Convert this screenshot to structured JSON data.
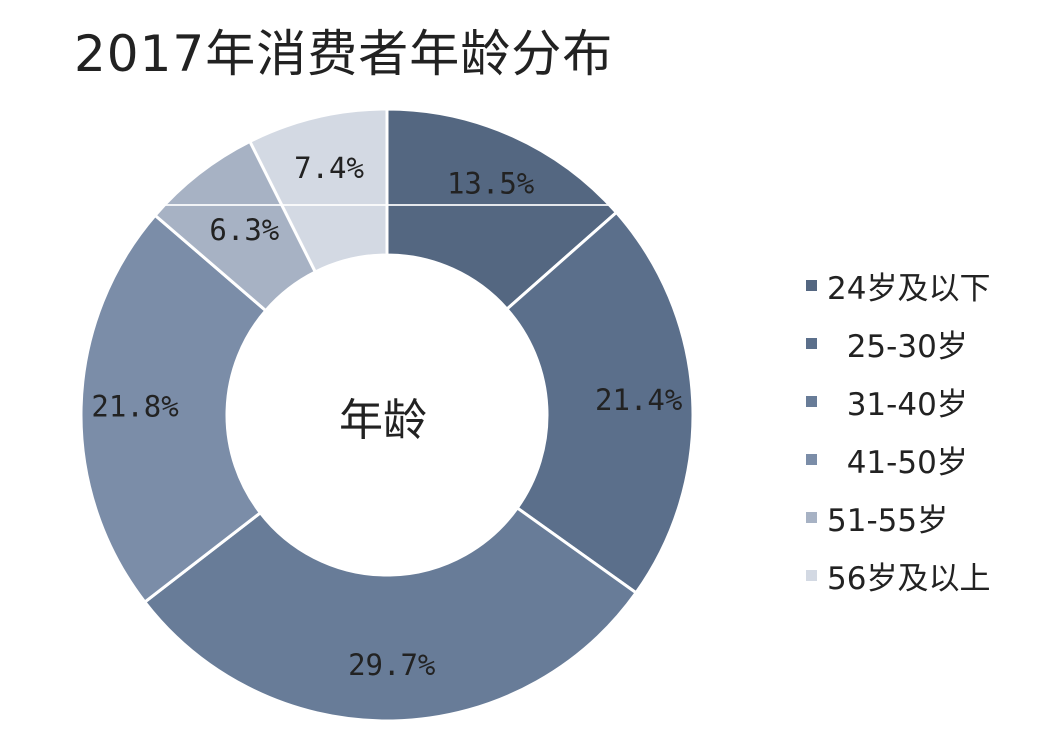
{
  "chart_data": {
    "type": "pie",
    "title": "2017年消费者年龄分布",
    "center_label": "年龄",
    "legend_position": "right",
    "categories": [
      "24岁及以下",
      "25-30岁",
      "31-40岁",
      "41-50岁",
      "51-55岁",
      "56岁及以上"
    ],
    "values": [
      13.5,
      21.4,
      29.7,
      21.8,
      6.3,
      7.4
    ],
    "value_labels": [
      "13.5%",
      "21.4%",
      "29.7%",
      "21.8%",
      "6.3%",
      "7.4%"
    ],
    "legend_labels": [
      "24岁及以下",
      "  25-30岁",
      "  31-40岁",
      "  41-50岁",
      "51-55岁",
      "56岁及以上"
    ],
    "colors": [
      "#546781",
      "#5b6f8b",
      "#687c98",
      "#7b8da8",
      "#a7b2c4",
      "#d3d9e3"
    ]
  }
}
